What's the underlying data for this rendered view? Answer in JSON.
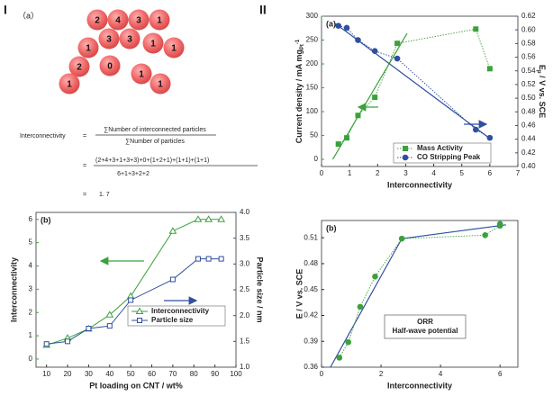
{
  "panel_labels": [
    "I",
    "II"
  ],
  "particle_diagram": {
    "label": "（a）",
    "particles": [
      "2",
      "4",
      "3",
      "1",
      "1",
      "3",
      "3",
      "1",
      "1",
      "2",
      "0",
      "1",
      "1",
      "1"
    ]
  },
  "formula": {
    "lhs": "Interconnectivity",
    "eq": "=",
    "numerator": "∑Number of interconnected particles",
    "denominator": "∑Number of particles",
    "numerator2": "(2+4+3+1+3+3)+0+(1+2+1)+(1+1)+(1+1)",
    "denominator2": "6+1+3+2+2",
    "result": "1. 7"
  },
  "chart_data": [
    {
      "type": "line",
      "label": "(b)",
      "x_label": "Pt loading on CNT / wt%",
      "y_label": "Interconnectivity",
      "y2_label": "Particle size / nm",
      "xlim": [
        5,
        100
      ],
      "xticks": [
        10,
        20,
        30,
        40,
        50,
        60,
        70,
        80,
        90,
        100
      ],
      "ylim": [
        -0.35,
        6.3
      ],
      "yticks": [
        0,
        1,
        2,
        3,
        4,
        5,
        6
      ],
      "y2lim": [
        1.0,
        4.0
      ],
      "y2ticks": [
        {
          "value": 1.0,
          "label": "1.0"
        },
        {
          "value": 1.5,
          "label": "1.5"
        },
        {
          "value": 2.0,
          "label": "2.0"
        },
        {
          "value": 2.5,
          "label": "2.5"
        },
        {
          "value": 3.0,
          "label": "3.0"
        },
        {
          "value": 3.5,
          "label": "3.5"
        },
        {
          "value": 4.0,
          "label": "4.0"
        }
      ],
      "legend_loc": "lower right",
      "series": [
        {
          "name": "Interconnectivity",
          "color": "#3aa23a",
          "marker": "triangle",
          "line": "solid",
          "x": [
            10,
            20,
            30,
            40,
            50,
            70,
            82,
            87,
            93
          ],
          "values": [
            0.6,
            0.9,
            1.3,
            1.9,
            2.7,
            5.5,
            6,
            6,
            6
          ]
        },
        {
          "name": "Particle size",
          "color": "#2f4f9f",
          "marker": "square",
          "line": "solid",
          "axis": "y2",
          "x": [
            10,
            20,
            30,
            40,
            50,
            70,
            82,
            87,
            93
          ],
          "values": [
            1.45,
            1.5,
            1.75,
            1.8,
            2.3,
            2.7,
            3.1,
            3.1,
            3.1
          ]
        }
      ]
    },
    {
      "type": "line",
      "label": "(a)",
      "x_label": "Interconnectivity",
      "y_label_parts": [
        "Current density / mA mg",
        "Pt",
        "-1"
      ],
      "y2_label_parts": [
        "E",
        "p",
        " / V vs. SCE"
      ],
      "xlim": [
        0,
        7
      ],
      "xticks": [
        0,
        1,
        2,
        3,
        4,
        5,
        6,
        7
      ],
      "ylim": [
        -15,
        300
      ],
      "yticks": [
        0,
        50,
        100,
        150,
        200,
        250,
        300
      ],
      "y2lim": [
        0.4,
        0.62
      ],
      "y2ticks": [
        {
          "value": 0.4,
          "label": "0.40"
        },
        0.42,
        0.44,
        0.46,
        0.48,
        {
          "value": 0.5,
          "label": "0.50"
        },
        0.52,
        0.54,
        0.56,
        0.58,
        {
          "value": 0.6,
          "label": "0.60"
        },
        0.62
      ],
      "legend_loc": "lower right",
      "series": [
        {
          "name": "Mass Activity",
          "color": "#3aa23a",
          "marker": "square",
          "line": "dotted",
          "x": [
            0.6,
            0.9,
            1.3,
            1.9,
            2.7,
            5.5,
            6
          ],
          "values": [
            32,
            45,
            92,
            130,
            243,
            273,
            190
          ]
        },
        {
          "name": "CO Stripping Peak",
          "color": "#2f4f9f",
          "marker": "circle",
          "line": "dotted",
          "axis": "y2",
          "x": [
            0.6,
            0.9,
            1.3,
            1.9,
            2.7,
            5.5,
            6
          ],
          "values": [
            0.606,
            0.603,
            0.585,
            0.569,
            0.558,
            0.454,
            0.442
          ]
        }
      ],
      "fit_lines": [
        {
          "color": "#3aa23a",
          "x": [
            0.4,
            3.05
          ],
          "values": [
            0,
            264
          ]
        },
        {
          "color": "#2f4f9f",
          "axis": "y2",
          "x": [
            0.5,
            6.0
          ],
          "values": [
            0.609,
            0.441
          ]
        }
      ]
    },
    {
      "type": "line",
      "label": "(b)",
      "x_label": "Interconnectivity",
      "y_label": "E / V vs. SCE",
      "xlim": [
        0,
        6.6
      ],
      "xticks": [
        0,
        2,
        4,
        6
      ],
      "ylim": [
        0.36,
        0.53
      ],
      "yticks": [
        0.36,
        0.39,
        0.42,
        0.45,
        0.48,
        0.51
      ],
      "legend_text": [
        "ORR",
        "Half-wave potential"
      ],
      "series": [
        {
          "color": "#3aa23a",
          "marker": "circle",
          "line": "dotted",
          "x": [
            0.6,
            0.9,
            1.3,
            1.8,
            2.7,
            5.5,
            6,
            6
          ],
          "values": [
            0.371,
            0.389,
            0.43,
            0.465,
            0.509,
            0.513,
            0.524,
            0.526
          ]
        }
      ],
      "fit_lines": [
        {
          "color": "#2f4f9f",
          "x": [
            0.3,
            2.7,
            6.2
          ],
          "values": [
            0.36,
            0.509,
            0.525
          ]
        }
      ]
    }
  ]
}
